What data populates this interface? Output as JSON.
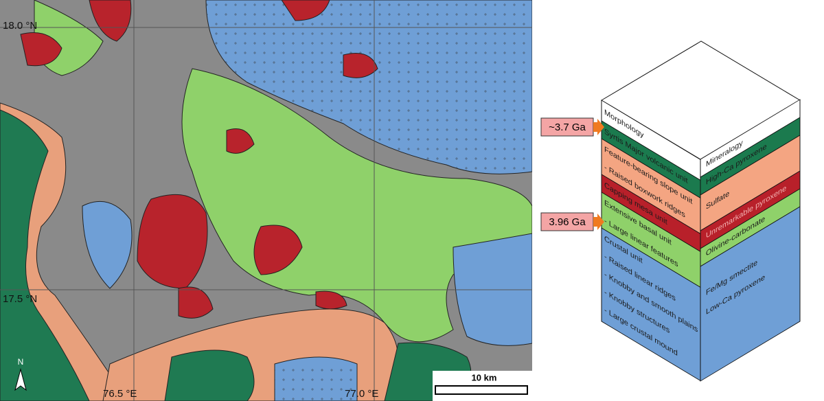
{
  "map": {
    "lat_labels": [
      "18.0 °N",
      "17.5 °N"
    ],
    "lon_labels": [
      "76.5 °E",
      "77.0 °E"
    ],
    "scale_bar": "10 km",
    "north": "N"
  },
  "ages": [
    "~3.7 Ga",
    "3.96 Ga"
  ],
  "block": {
    "front_title": "Morphology",
    "side_title": "Mineralogy",
    "morphology": [
      "Syrtis Major volcanic unit",
      "Feature-bearing slope unit",
      "- Raised boxwork ridges",
      "Capping mesa unit",
      "Extensive basal unit",
      "- Large linear features",
      "Crustal unit",
      "- Raised linear ridges",
      "- Knobby and smooth plains",
      "- Knobby structures",
      "- Large crustal mound"
    ],
    "mineralogy": [
      "High-Ca pyroxene",
      "Sulfate",
      "Unremarkable pyroxene",
      "Olivine-carbonate",
      "Fe/Mg smectite",
      "Low-Ca pyroxene"
    ]
  }
}
